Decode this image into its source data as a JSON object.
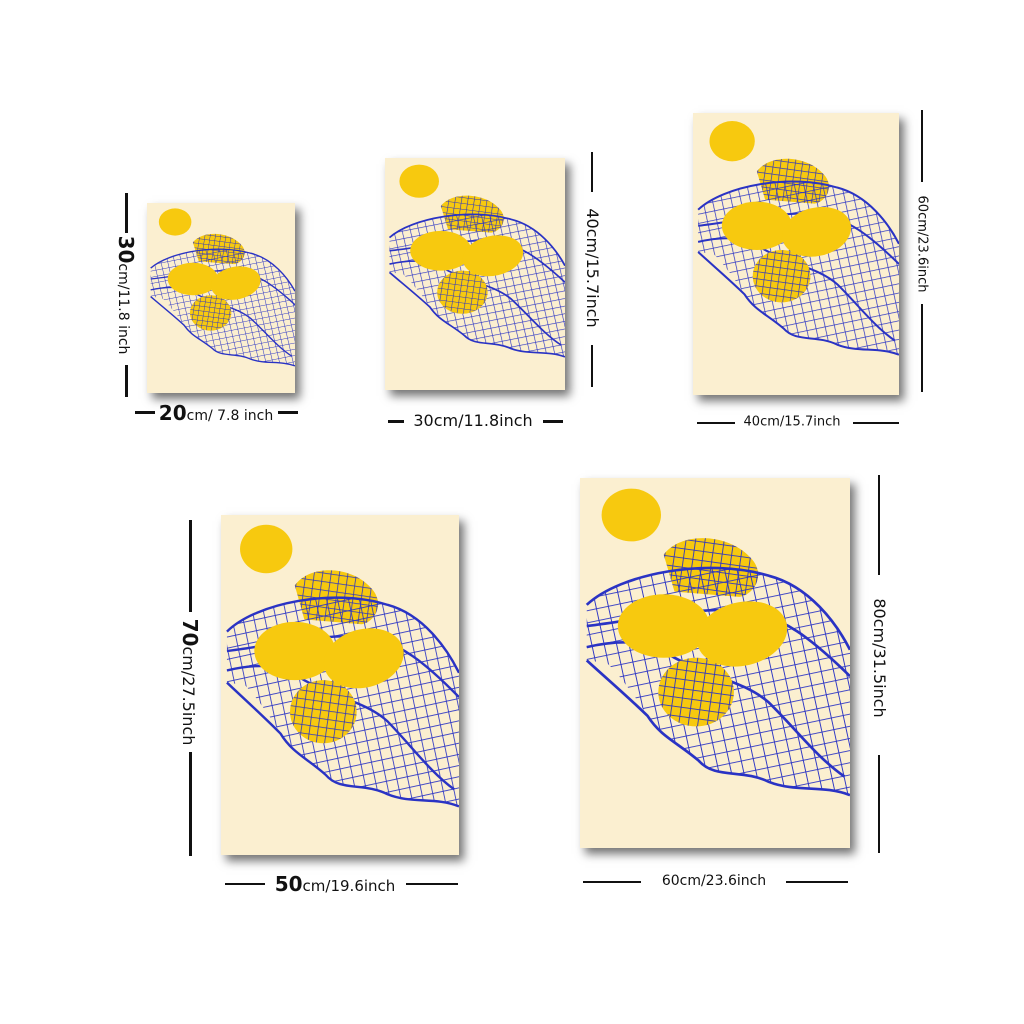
{
  "colors": {
    "background": "#ffffff",
    "poster_paper": "#fbefd0",
    "lemon": "#f7c90f",
    "net": "#2a33c4",
    "text": "#111111"
  },
  "posters": [
    {
      "id": "p20x30",
      "width_label": {
        "num": "20",
        "unit": "cm/",
        "inch": " 7.8 inch"
      },
      "height_label": {
        "num": "30",
        "unit": "cm/",
        "inch": "11.8 inch"
      }
    },
    {
      "id": "p30x40",
      "width_label": {
        "num": "30cm/11.8inch",
        "unit": "",
        "inch": ""
      },
      "height_label": {
        "num": "40cm/15.7inch",
        "unit": "",
        "inch": ""
      }
    },
    {
      "id": "p40x60",
      "width_label": {
        "num": "40cm/15.7inch",
        "unit": "",
        "inch": ""
      },
      "height_label": {
        "num": "60cm/23.6inch",
        "unit": "",
        "inch": ""
      }
    },
    {
      "id": "p50x70",
      "width_label": {
        "num": "50",
        "unit": "cm/",
        "inch": "19.6inch"
      },
      "height_label": {
        "num": "70",
        "unit": "cm/",
        "inch": "27.5inch"
      }
    },
    {
      "id": "p60x80",
      "width_label": {
        "num": "60cm/23.6inch",
        "unit": "",
        "inch": ""
      },
      "height_label": {
        "num": "80cm/31.5inch",
        "unit": "",
        "inch": ""
      }
    }
  ]
}
